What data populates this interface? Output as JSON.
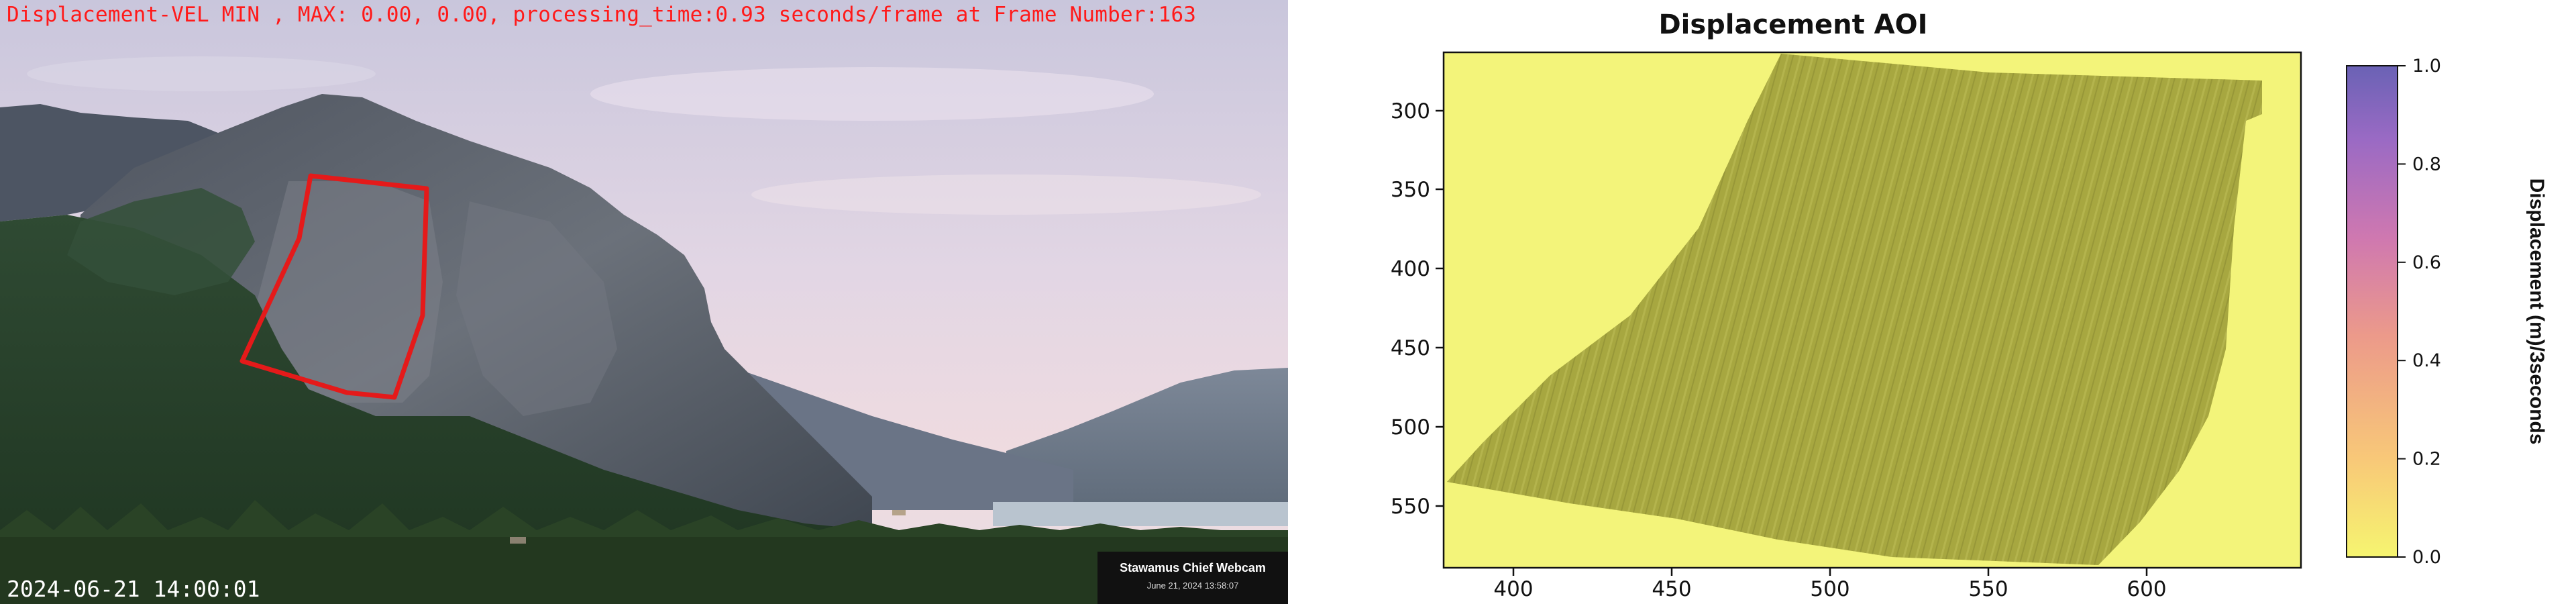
{
  "camera_view": {
    "overlay_text": "Displacement-VEL MIN , MAX: 0.00, 0.00, processing_time:0.93 seconds/frame at Frame Number:163",
    "timestamp": "2024-06-21 14:00:01",
    "webcam_badge": {
      "title": "Stawamus Chief Webcam",
      "subtitle": "June 21, 2024 13:58:07"
    },
    "colors": {
      "overlay_text": "#ff1a1a",
      "aoi_outline": "#e41a1a"
    }
  },
  "plot_view": {
    "title": "Displacement AOI",
    "x_tick_labels": [
      "400",
      "450",
      "500",
      "550",
      "600"
    ],
    "y_tick_labels": [
      "300",
      "350",
      "400",
      "450",
      "500",
      "550"
    ],
    "colorbar": {
      "label": "Displacement (m)/3seconds",
      "tick_labels": [
        "0.0",
        "0.2",
        "0.4",
        "0.6",
        "0.8",
        "1.0"
      ],
      "colors": {
        "low": "#f5f56e",
        "mid": "#e07a8a",
        "high": "#6a62b5"
      }
    },
    "colors": {
      "background_fill": "#f3f47a",
      "aoi_fill": "#a8a841"
    }
  }
}
